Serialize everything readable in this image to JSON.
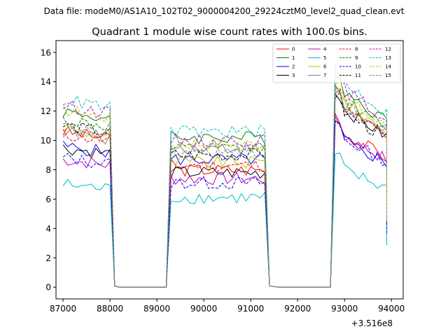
{
  "chart_data": {
    "type": "line",
    "suptitle": "Data file: modeM0/AS1A10_102T02_9000004200_29224cztM0_level2_quad_clean.evt",
    "title": "Quadrant 1 module wise count rates with 100.0s bins.",
    "xlabel": "",
    "ylabel": "",
    "x_offset_label": "+3.516e8",
    "xlim": [
      86850,
      94250
    ],
    "ylim": [
      -0.8,
      16.8
    ],
    "xticks": [
      87000,
      88000,
      89000,
      90000,
      91000,
      92000,
      93000,
      94000
    ],
    "yticks": [
      0,
      2,
      4,
      6,
      8,
      10,
      12,
      14,
      16
    ],
    "xtick_labels": [
      "87000",
      "88000",
      "89000",
      "90000",
      "91000",
      "92000",
      "93000",
      "94000"
    ],
    "ytick_labels": [
      "0",
      "2",
      "4",
      "6",
      "8",
      "10",
      "12",
      "14",
      "16"
    ],
    "legend_position": "top-right",
    "segments": [
      {
        "start": 87000,
        "end": 88000,
        "sag": 0.25
      },
      {
        "start": 89300,
        "end": 91300,
        "sag": 0.0
      },
      {
        "start": 92800,
        "end": 93900,
        "sag": 1.0
      }
    ],
    "gaps": [
      [
        88100,
        89200
      ],
      [
        91500,
        92600
      ]
    ],
    "series": [
      {
        "name": "0",
        "color": "#ff0000",
        "dash": "solid",
        "levels": [
          10.6,
          8.0,
          10.8
        ]
      },
      {
        "name": "1",
        "color": "#008000",
        "dash": "solid",
        "levels": [
          12.0,
          10.2,
          13.8
        ]
      },
      {
        "name": "2",
        "color": "#0000ff",
        "dash": "solid",
        "levels": [
          9.6,
          8.7,
          10.3
        ]
      },
      {
        "name": "3",
        "color": "#000000",
        "dash": "solid",
        "levels": [
          9.5,
          7.8,
          12.5
        ]
      },
      {
        "name": "4",
        "color": "#bf00bf",
        "dash": "solid",
        "levels": [
          8.7,
          7.4,
          10.6
        ]
      },
      {
        "name": "5",
        "color": "#00bfbf",
        "dash": "solid",
        "levels": [
          7.0,
          6.1,
          8.2
        ]
      },
      {
        "name": "6",
        "color": "#bfbf00",
        "dash": "solid",
        "levels": [
          10.8,
          8.5,
          13.0
        ]
      },
      {
        "name": "7",
        "color": "#808080",
        "dash": "solid",
        "levels": [
          10.6,
          9.5,
          12.7
        ]
      },
      {
        "name": "8",
        "color": "#ff0000",
        "dash": "dashed",
        "levels": [
          10.4,
          8.3,
          12.5
        ]
      },
      {
        "name": "9",
        "color": "#008000",
        "dash": "dashed",
        "levels": [
          11.4,
          9.4,
          13.2
        ]
      },
      {
        "name": "10",
        "color": "#0000ff",
        "dash": "dashed",
        "levels": [
          8.8,
          7.1,
          10.4
        ]
      },
      {
        "name": "11",
        "color": "#000000",
        "dash": "dashed",
        "levels": [
          11.0,
          9.0,
          12.3
        ]
      },
      {
        "name": "12",
        "color": "#bf00bf",
        "dash": "dashed",
        "levels": [
          12.4,
          10.0,
          13.9
        ]
      },
      {
        "name": "13",
        "color": "#00bfbf",
        "dash": "dashed",
        "levels": [
          12.8,
          10.6,
          14.4
        ]
      },
      {
        "name": "14",
        "color": "#bfbf00",
        "dash": "dashed",
        "levels": [
          12.1,
          9.8,
          13.3
        ]
      },
      {
        "name": "15",
        "color": "#808080",
        "dash": "dashed",
        "levels": [
          10.9,
          9.2,
          12.8
        ]
      }
    ]
  }
}
